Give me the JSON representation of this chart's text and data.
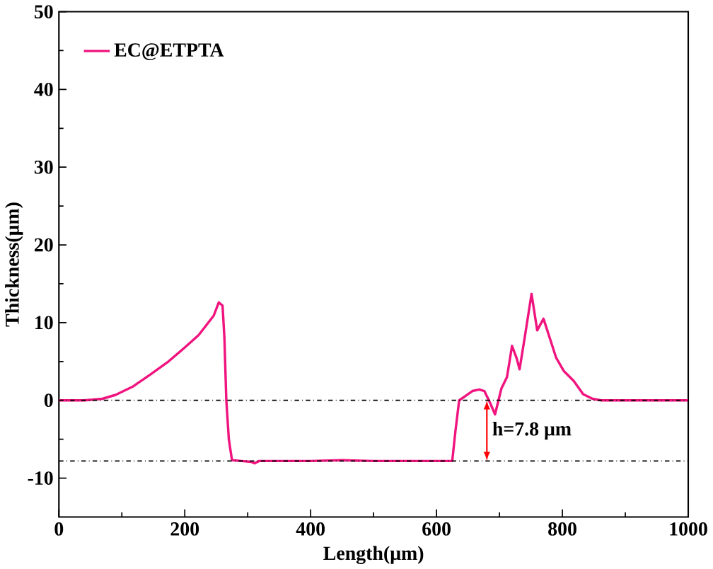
{
  "chart_data": {
    "type": "line",
    "xlabel": "Length(μm)",
    "ylabel": "Thickness(μm)",
    "xlim": [
      0,
      1000
    ],
    "ylim": [
      -15,
      50
    ],
    "xticks": [
      0,
      200,
      400,
      600,
      800,
      1000
    ],
    "yticks": [
      -10,
      0,
      10,
      20,
      30,
      40,
      50
    ],
    "legend": "top left",
    "grid": false,
    "marker": "none",
    "line_style": "solid",
    "series": [
      {
        "name": "EC@ETPTA",
        "color": "#f0147f",
        "x": [
          0,
          40,
          69,
          90,
          118,
          145,
          174,
          200,
          222,
          246,
          254,
          260,
          263,
          266,
          270,
          275,
          290,
          305,
          311,
          318,
          350,
          400,
          450,
          500,
          550,
          600,
          625,
          630,
          636,
          645,
          657,
          668,
          676,
          685,
          693,
          703,
          712,
          720,
          727,
          732,
          740,
          751,
          760,
          770,
          780,
          790,
          802,
          818,
          833,
          848,
          862,
          900,
          950,
          1000
        ],
        "values": [
          0,
          0,
          0.2,
          0.7,
          1.8,
          3.3,
          5,
          6.8,
          8.4,
          10.9,
          12.6,
          12.2,
          8,
          0,
          -5,
          -7.7,
          -7.8,
          -7.9,
          -8.1,
          -7.8,
          -7.8,
          -7.8,
          -7.7,
          -7.8,
          -7.8,
          -7.8,
          -7.8,
          -4,
          0,
          0.5,
          1.2,
          1.4,
          1.2,
          -0.3,
          -1.8,
          1.5,
          3,
          7,
          5.5,
          4,
          8,
          13.7,
          9,
          10.5,
          8,
          5.5,
          3.8,
          2.5,
          0.8,
          0.2,
          0,
          0,
          0,
          0
        ]
      }
    ],
    "ref_lines": [
      {
        "axis": "y",
        "value": 0,
        "color": "#000000",
        "line_style": "dashdot"
      },
      {
        "axis": "y",
        "value": -7.8,
        "color": "#000000",
        "line_style": "dashdot"
      }
    ],
    "annotations": [
      "h=7.8 μm"
    ]
  }
}
